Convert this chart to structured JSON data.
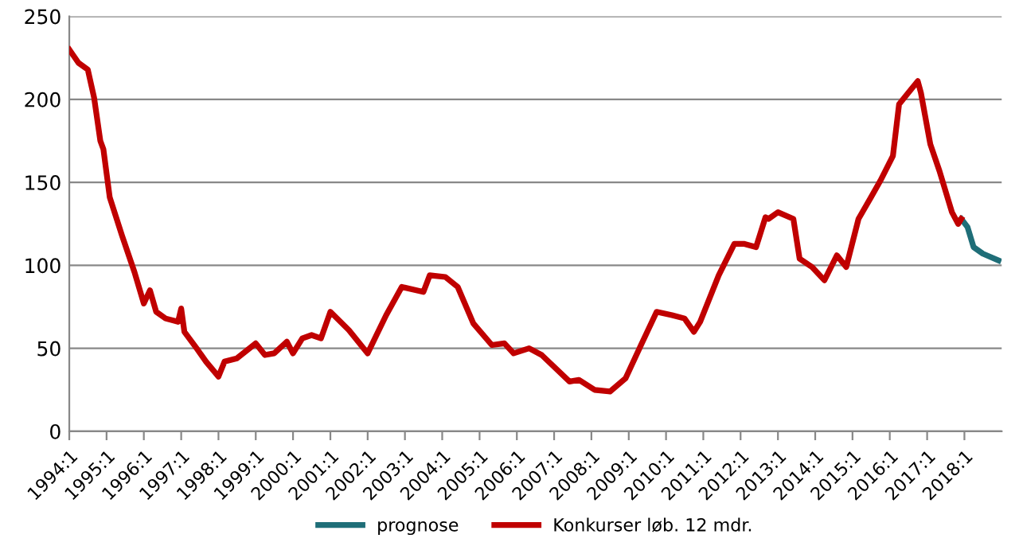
{
  "chart_data": {
    "type": "line",
    "series": [
      {
        "name": "prognose",
        "color": "#1f6e78",
        "x": [
          "2017-12",
          "2018-02",
          "2018-04",
          "2018-07",
          "2018-12"
        ],
        "values": [
          128,
          123,
          111,
          107,
          103
        ]
      },
      {
        "name": "Konkurser løb. 12 mdr.",
        "color": "#c00000",
        "x": [
          "1994-01",
          "1994-04",
          "1994-07",
          "1994-09",
          "1994-11",
          "1994-12",
          "1995-02",
          "1995-06",
          "1995-10",
          "1996-01",
          "1996-03",
          "1996-05",
          "1996-08",
          "1996-12",
          "1997-01",
          "1997-02",
          "1997-06",
          "1997-09",
          "1998-01",
          "1998-03",
          "1998-07",
          "1998-11",
          "1999-01",
          "1999-04",
          "1999-07",
          "1999-11",
          "2000-01",
          "2000-04",
          "2000-07",
          "2000-10",
          "2001-01",
          "2001-07",
          "2002-01",
          "2002-07",
          "2002-12",
          "2003-07",
          "2003-09",
          "2004-02",
          "2004-06",
          "2004-11",
          "2005-05",
          "2005-09",
          "2005-12",
          "2006-05",
          "2006-09",
          "2007-06",
          "2007-09",
          "2008-02",
          "2008-07",
          "2008-12",
          "2009-05",
          "2009-10",
          "2010-03",
          "2010-07",
          "2010-10",
          "2010-12",
          "2011-06",
          "2011-11",
          "2012-02",
          "2012-06",
          "2012-09",
          "2012-10",
          "2013-01",
          "2013-06",
          "2013-08",
          "2013-12",
          "2014-04",
          "2014-08",
          "2014-11",
          "2015-03",
          "2015-07",
          "2015-10",
          "2016-02",
          "2016-04",
          "2016-07",
          "2016-10",
          "2016-11",
          "2017-02",
          "2017-05",
          "2017-09",
          "2017-11",
          "2017-12"
        ],
        "values": [
          230,
          222,
          218,
          201,
          175,
          170,
          141,
          118,
          96,
          77,
          85,
          72,
          68,
          66,
          74,
          60,
          50,
          42,
          33,
          42,
          44,
          50,
          53,
          46,
          47,
          54,
          47,
          56,
          58,
          56,
          72,
          61,
          47,
          70,
          87,
          84,
          94,
          93,
          87,
          65,
          52,
          53,
          47,
          50,
          46,
          30,
          31,
          25,
          24,
          32,
          52,
          72,
          70,
          68,
          60,
          66,
          94,
          113,
          113,
          111,
          129,
          128,
          132,
          128,
          104,
          99,
          91,
          106,
          99,
          128,
          141,
          151,
          166,
          197,
          204,
          211,
          204,
          173,
          157,
          132,
          125,
          128
        ]
      }
    ],
    "xlim": [
      "1994-01",
      "2019-01"
    ],
    "xticks": [
      {
        "value": "1994-01",
        "label": "1994:1"
      },
      {
        "value": "1995-01",
        "label": "1995:1"
      },
      {
        "value": "1996-01",
        "label": "1996:1"
      },
      {
        "value": "1997-01",
        "label": "1997:1"
      },
      {
        "value": "1998-01",
        "label": "1998:1"
      },
      {
        "value": "1999-01",
        "label": "1999:1"
      },
      {
        "value": "2000-01",
        "label": "2000:1"
      },
      {
        "value": "2001-01",
        "label": "2001:1"
      },
      {
        "value": "2002-01",
        "label": "2002:1"
      },
      {
        "value": "2003-01",
        "label": "2003:1"
      },
      {
        "value": "2004-01",
        "label": "2004:1"
      },
      {
        "value": "2005-01",
        "label": "2005:1"
      },
      {
        "value": "2006-01",
        "label": "2006:1"
      },
      {
        "value": "2007-01",
        "label": "2007:1"
      },
      {
        "value": "2008-01",
        "label": "2008:1"
      },
      {
        "value": "2009-01",
        "label": "2009:1"
      },
      {
        "value": "2010-01",
        "label": "2010:1"
      },
      {
        "value": "2011-01",
        "label": "2011:1"
      },
      {
        "value": "2012-01",
        "label": "2012:1"
      },
      {
        "value": "2013-01",
        "label": "2013:1"
      },
      {
        "value": "2014-01",
        "label": "2014:1"
      },
      {
        "value": "2015-01",
        "label": "2015:1"
      },
      {
        "value": "2016-01",
        "label": "2016:1"
      },
      {
        "value": "2017-01",
        "label": "2017:1"
      },
      {
        "value": "2018-01",
        "label": "2018:1"
      }
    ],
    "ylim": [
      0,
      250
    ],
    "yticks": [
      0,
      50,
      100,
      150,
      200,
      250
    ],
    "grid": "y",
    "legend": "bottom",
    "line_style": "solid",
    "marker": "none"
  }
}
